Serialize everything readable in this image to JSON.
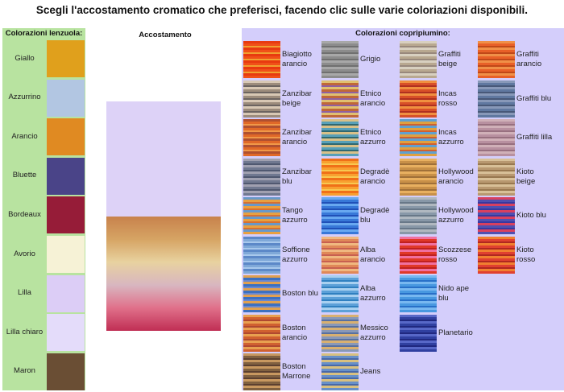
{
  "title": "Scegli l'accostamento cromatico che preferisci, facendo clic sulle varie coloriazioni disponibili.",
  "left_header": "Colorazioni lenzuola:",
  "middle_header": "Accostamento",
  "right_header": "Colorazioni copripiumino:",
  "sheets": [
    {
      "label": "Giallo",
      "color": "#e0a01c"
    },
    {
      "label": "Azzurrino",
      "color": "#b2c6e2"
    },
    {
      "label": "Arancio",
      "color": "#e08a22"
    },
    {
      "label": "Bluette",
      "color": "#4a4488"
    },
    {
      "label": "Bordeaux",
      "color": "#961c38"
    },
    {
      "label": "Avorio",
      "color": "#f6f2d6"
    },
    {
      "label": "Lilla",
      "color": "#dccdf6"
    },
    {
      "label": "Lilla chiaro",
      "color": "#e4dcfa"
    },
    {
      "label": "Maron",
      "color": "#6a4e34"
    }
  ],
  "preview": {
    "sheet_color": "#ddd2f7",
    "cover_gradient": [
      "#c8824c",
      "#d6a464",
      "#e8d2a0",
      "#d8b6c0",
      "#e0708a",
      "#c02e54"
    ]
  },
  "duvets": [
    {
      "label": "Biagiotto arancio",
      "colors": [
        "#f05018",
        "#e83a10",
        "#f0a030"
      ]
    },
    {
      "label": "Zanzibar beige",
      "colors": [
        "#9c8c7c",
        "#d8c8b4",
        "#6c6460"
      ]
    },
    {
      "label": "Zanzibar arancio",
      "colors": [
        "#e06828",
        "#b05030",
        "#f09848"
      ]
    },
    {
      "label": "Zanzibar blu",
      "colors": [
        "#707890",
        "#a0a0b0",
        "#505870"
      ]
    },
    {
      "label": "Tango azzurro",
      "colors": [
        "#e8a040",
        "#6898c8",
        "#d87030"
      ]
    },
    {
      "label": "Soffione azzurro",
      "colors": [
        "#7fa8d8",
        "#5c88c8",
        "#a8c8ec"
      ]
    },
    {
      "label": "Boston blu",
      "colors": [
        "#3c70c0",
        "#e0a050",
        "#6888d0"
      ]
    },
    {
      "label": "Boston arancio",
      "colors": [
        "#d06030",
        "#e8a050",
        "#b04830"
      ]
    },
    {
      "label": "Boston Marrone",
      "colors": [
        "#806040",
        "#c89860",
        "#5c4030"
      ]
    },
    {
      "label": "Grigio",
      "colors": [
        "#8c8c8c",
        "#a8a8a8",
        "#707070"
      ]
    },
    {
      "label": "Etnico arancio",
      "colors": [
        "#c06838",
        "#e0c070",
        "#9060a0"
      ]
    },
    {
      "label": "Etnico azzurro",
      "colors": [
        "#58a0b8",
        "#d8c088",
        "#306870"
      ]
    },
    {
      "label": "Degradè arancio",
      "colors": [
        "#f8a030",
        "#f07018",
        "#f8c850"
      ]
    },
    {
      "label": "Degradè blu",
      "colors": [
        "#3878d8",
        "#68a8f0",
        "#2050b8"
      ]
    },
    {
      "label": "Alba arancio",
      "colors": [
        "#e08858",
        "#f0b880",
        "#c86050"
      ]
    },
    {
      "label": "Alba azzurro",
      "colors": [
        "#5ca0d8",
        "#a8d0f0",
        "#3080c0"
      ]
    },
    {
      "label": "Messico azzurro",
      "colors": [
        "#8898b8",
        "#d8b070",
        "#5870a0"
      ]
    },
    {
      "label": "Jeans",
      "colors": [
        "#6890c8",
        "#d8c080",
        "#4868a8"
      ]
    },
    {
      "label": "Graffiti beige",
      "colors": [
        "#b8a890",
        "#d8d0c0",
        "#98887c"
      ]
    },
    {
      "label": "Incas rosso",
      "colors": [
        "#d85028",
        "#f09040",
        "#b03020"
      ]
    },
    {
      "label": "Incas azzurro",
      "colors": [
        "#e0a040",
        "#60a0d0",
        "#d06030"
      ]
    },
    {
      "label": "Hollywood arancio",
      "colors": [
        "#c89048",
        "#e8b060",
        "#a07038"
      ]
    },
    {
      "label": "Hollywood azzurro",
      "colors": [
        "#8898a8",
        "#b0b8c0",
        "#687888"
      ]
    },
    {
      "label": "Scozzese rosso",
      "colors": [
        "#e03828",
        "#f070a0",
        "#c02020"
      ]
    },
    {
      "label": "Nido ape blu",
      "colors": [
        "#4898e0",
        "#78b8f0",
        "#2870c8"
      ]
    },
    {
      "label": "Planetario",
      "colors": [
        "#3040a0",
        "#5868c8",
        "#202880"
      ]
    },
    {
      "label": "Graffiti arancio",
      "colors": [
        "#e86028",
        "#f09048",
        "#c04818"
      ]
    },
    {
      "label": "Graffiti blu",
      "colors": [
        "#6078a0",
        "#8898b8",
        "#485878"
      ]
    },
    {
      "label": "Graffiti lilla",
      "colors": [
        "#b890a0",
        "#d0b0b8",
        "#987080"
      ]
    },
    {
      "label": "Kioto beige",
      "colors": [
        "#b89870",
        "#d8c098",
        "#987850"
      ]
    },
    {
      "label": "Kioto blu",
      "colors": [
        "#5050b0",
        "#d84060",
        "#3838a0"
      ]
    },
    {
      "label": "Kioto rosso",
      "colors": [
        "#e04030",
        "#f08030",
        "#b02820"
      ]
    }
  ]
}
